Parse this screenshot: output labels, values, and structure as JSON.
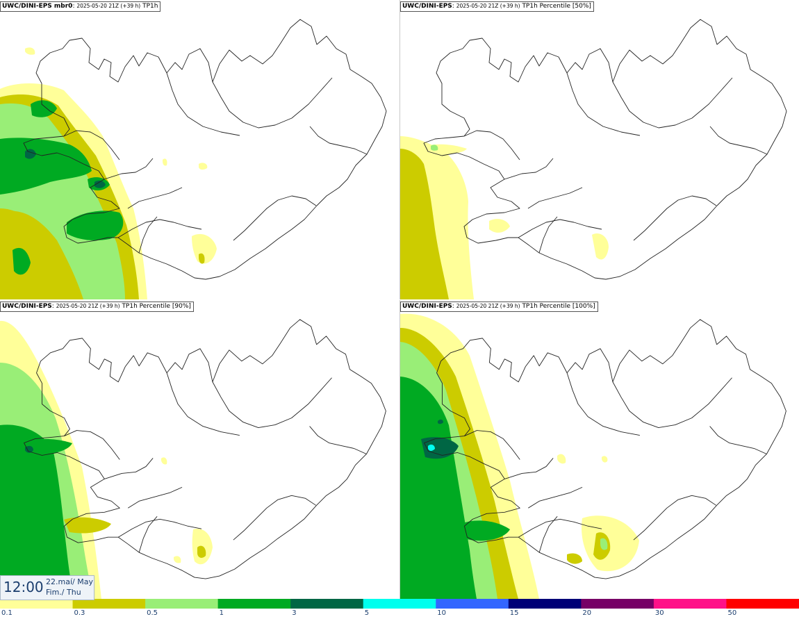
{
  "panels": [
    {
      "model": "UWC/DINI-EPS mbr0",
      "run": "2025-05-20 21Z (+39 h)",
      "field": "TP1h"
    },
    {
      "model": "UWC/DINI-EPS",
      "run": "2025-05-20 21Z (+39 h)",
      "field": "TP1h Percentile [50%]"
    },
    {
      "model": "UWC/DINI-EPS",
      "run": "2025-05-20 21Z (+39 h)",
      "field": "TP1h Percentile [90%]"
    },
    {
      "model": "UWC/DINI-EPS",
      "run": "2025-05-20 21Z (+39 h)",
      "field": "TP1h Percentile [100%]"
    }
  ],
  "time": {
    "hour": "12:00",
    "date": "22.maí/ May",
    "day": "Fim./ Thu"
  },
  "legend": {
    "ticks": [
      "0.1",
      "0.3",
      "0.5",
      "1",
      "3",
      "5",
      "10",
      "15",
      "20",
      "30",
      "50"
    ],
    "colors": [
      "#ffff99",
      "#cccc00",
      "#99ee77",
      "#00aa22",
      "#006644",
      "#00ffee",
      "#3366ff",
      "#000077",
      "#770066",
      "#ff1188",
      "#ff0000"
    ]
  }
}
